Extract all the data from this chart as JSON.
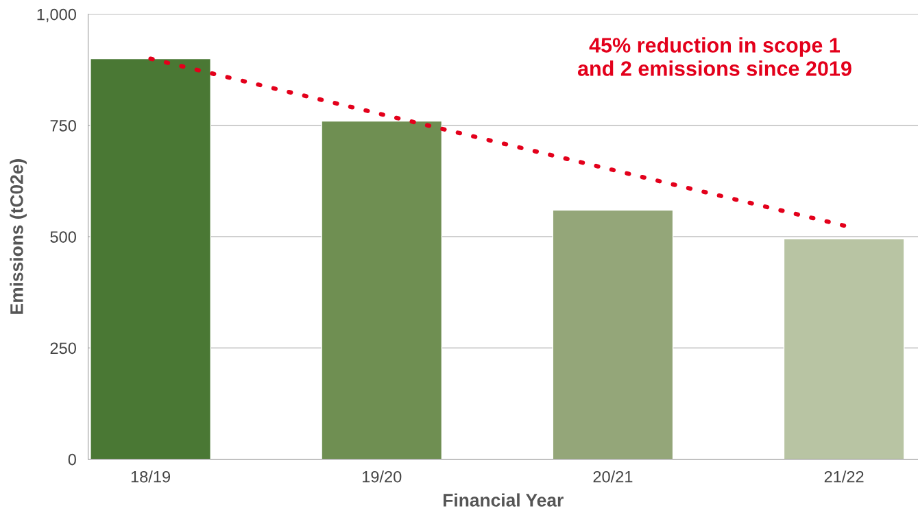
{
  "chart_data": {
    "type": "bar",
    "xlabel": "Financial Year",
    "ylabel": "Emissions (tC02e)",
    "categories": [
      "18/19",
      "19/20",
      "20/21",
      "21/22"
    ],
    "series": [
      {
        "colors": [
          "#4a7834",
          "#6f8f52",
          "#94a679",
          "#b8c4a3"
        ],
        "values": [
          900,
          760,
          560,
          495
        ]
      },
      {
        "type": "line",
        "color": "#e3001b",
        "line_style": "dotted",
        "values": [
          900,
          775,
          650,
          525
        ]
      }
    ],
    "ylim": [
      0,
      1000
    ],
    "yticks": [
      0,
      250,
      500,
      750,
      {
        "value": 1000,
        "label": "1,000"
      }
    ],
    "grid": "y",
    "legend": false,
    "annotations": [
      "45% reduction in scope 1\nand 2 emissions since 2019"
    ]
  }
}
